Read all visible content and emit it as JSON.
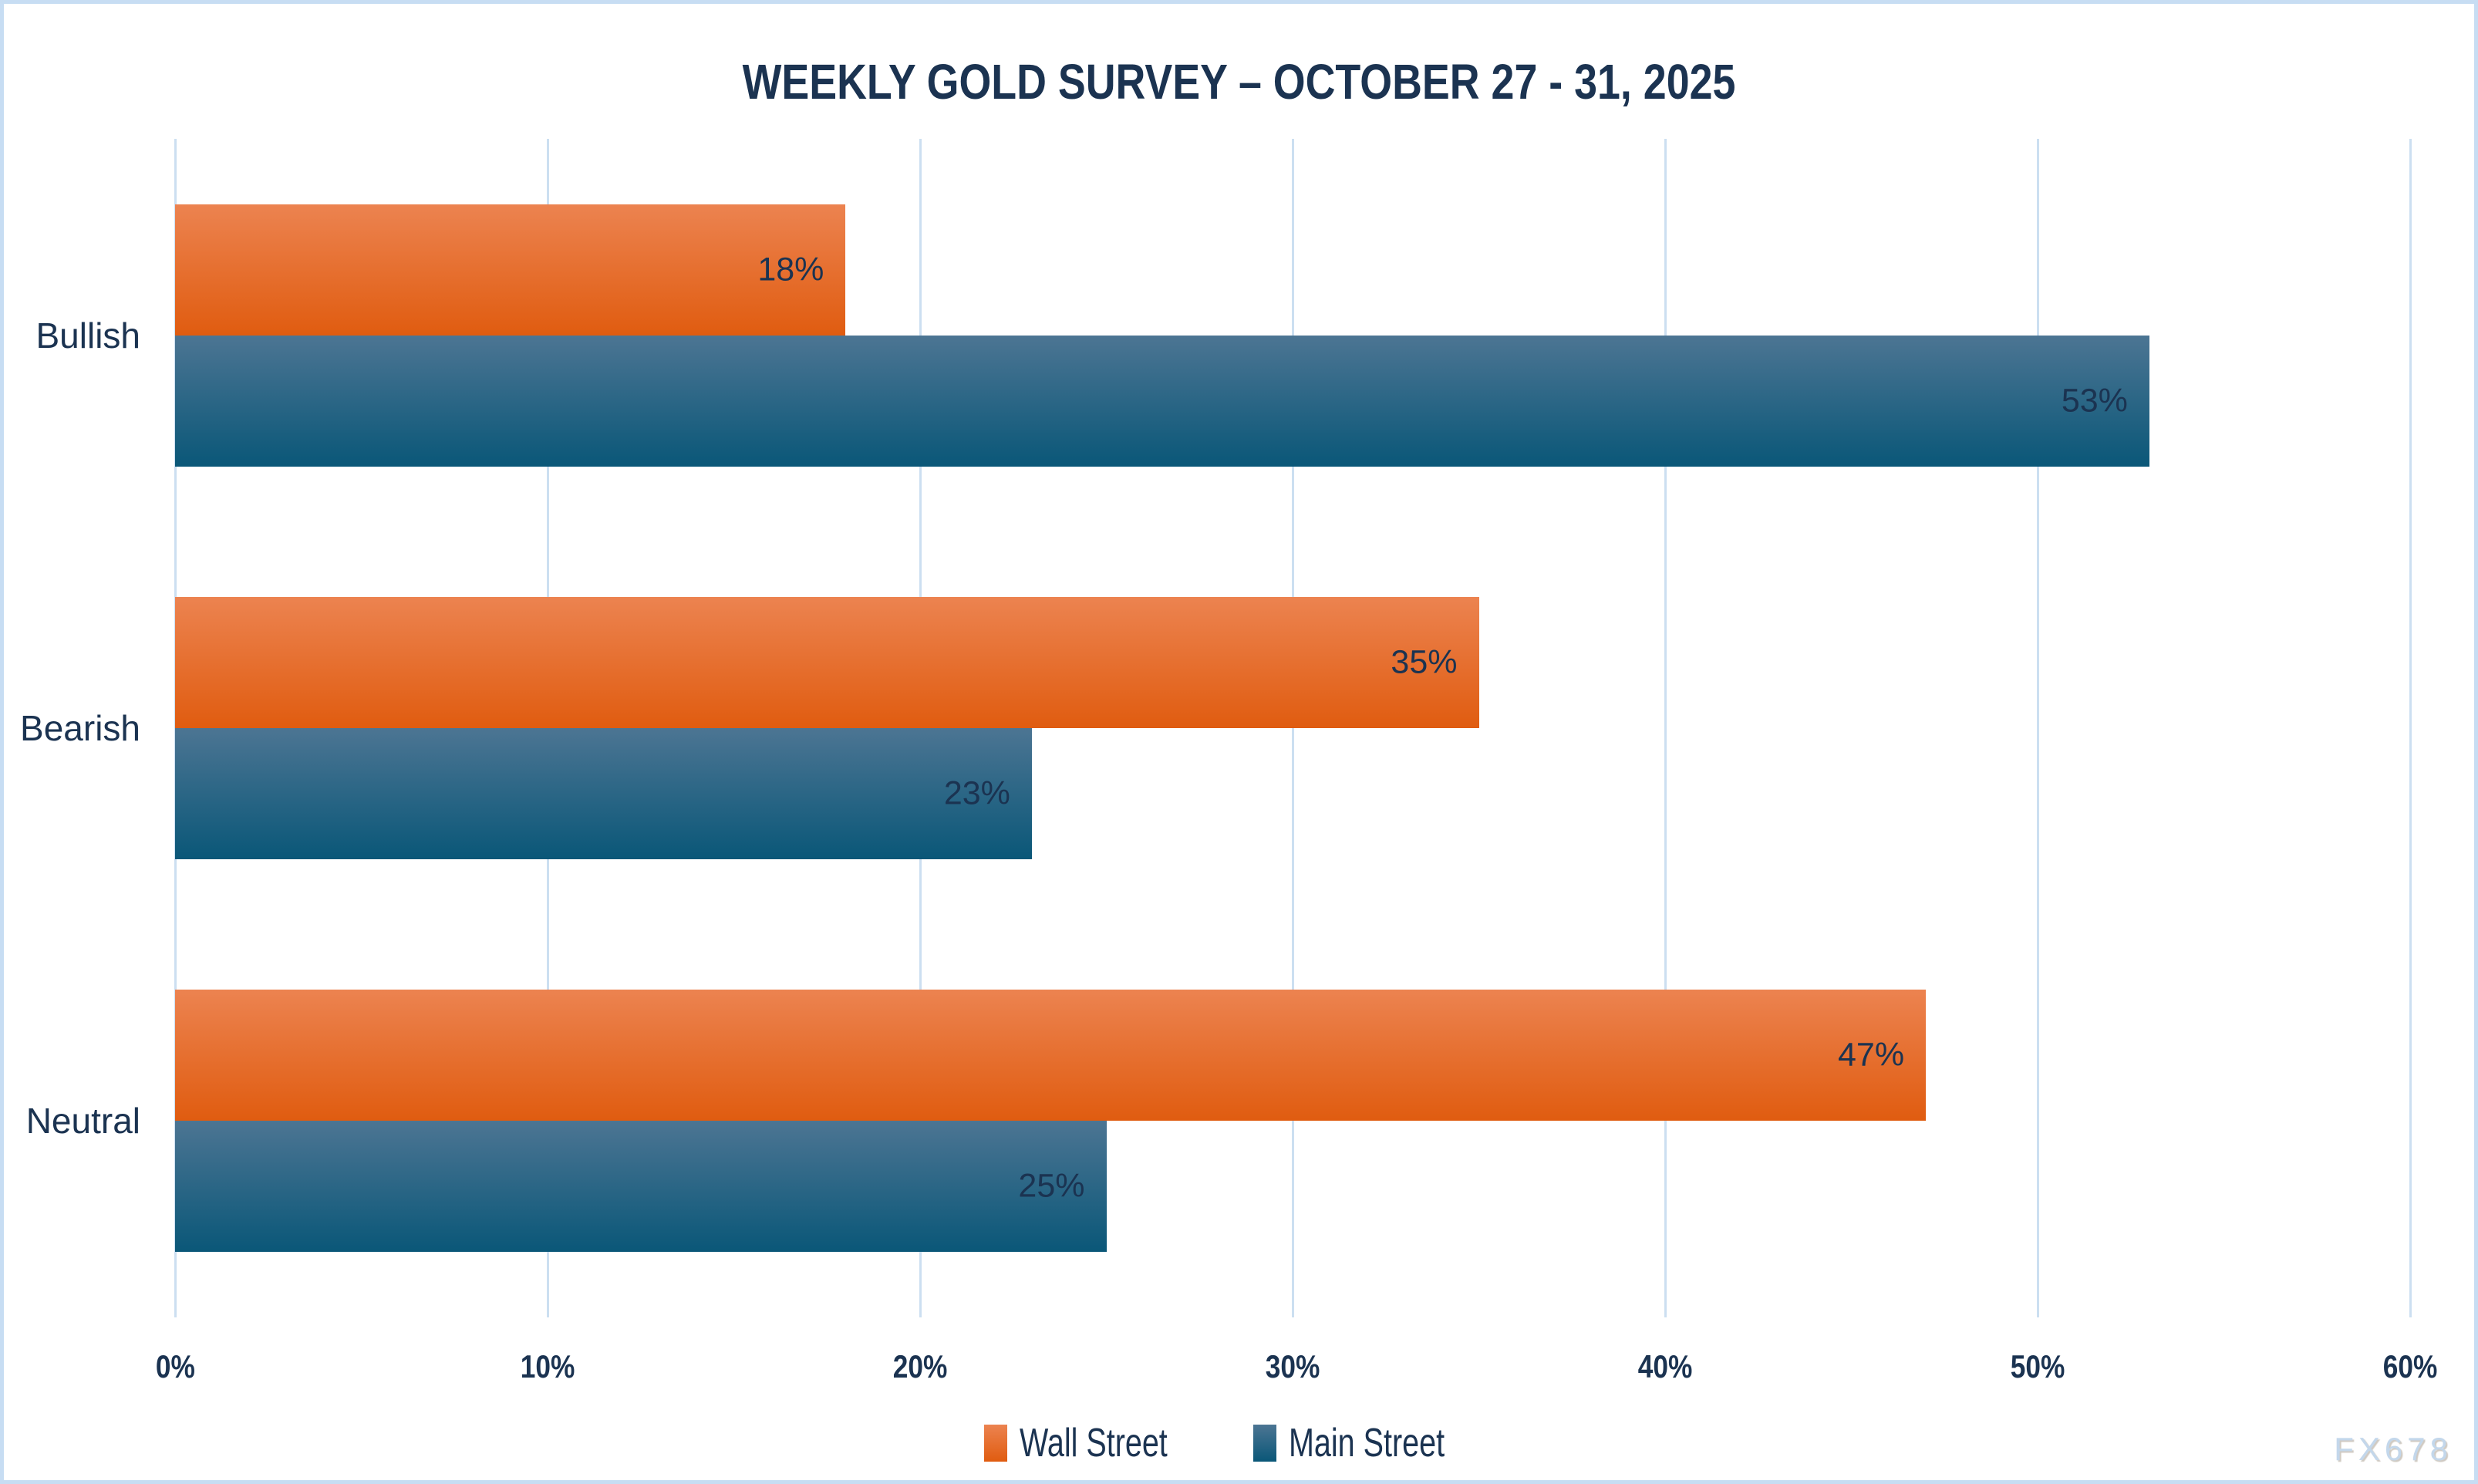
{
  "chart_data": {
    "type": "bar",
    "orientation": "horizontal",
    "title": "WEEKLY GOLD SURVEY – OCTOBER 27 - 31, 2025",
    "categories": [
      "Bullish",
      "Bearish",
      "Neutral"
    ],
    "series": [
      {
        "name": "Wall Street",
        "values": [
          18,
          35,
          47
        ],
        "gradient_top": "#EC8350",
        "gradient_bottom": "#E05C10"
      },
      {
        "name": "Main Street",
        "values": [
          53,
          23,
          25
        ],
        "gradient_top": "#4C7593",
        "gradient_bottom": "#0A5778"
      }
    ],
    "data_label_suffix": "%",
    "xlim": [
      0,
      60
    ],
    "x_tick_labels": [
      "0%",
      "10%",
      "20%",
      "30%",
      "40%",
      "50%",
      "60%"
    ],
    "grid": "vertical",
    "legend_position": "bottom",
    "colors": {
      "text_navy": "#1B3351",
      "gridline": "#CCDFF1",
      "frame_border": "#C7DDF3",
      "background": "#FFFFFF",
      "watermark_color": "#C3D7EB"
    },
    "watermark": "FX678"
  }
}
